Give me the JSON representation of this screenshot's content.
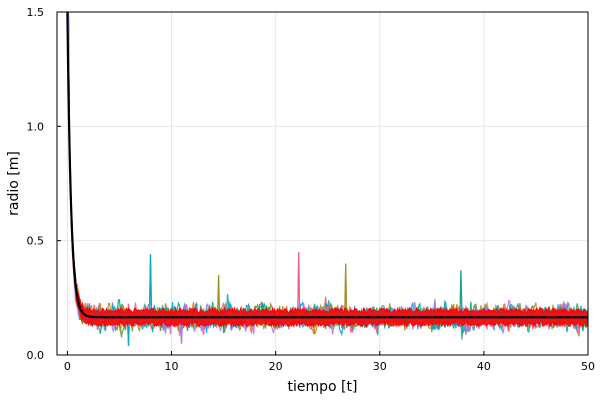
{
  "chart_data": {
    "type": "line",
    "title": "",
    "xlabel": "tiempo [t]",
    "ylabel": "radio [m]",
    "xlim": [
      -1,
      50
    ],
    "ylim": [
      0,
      1.5
    ],
    "xticks": [
      0,
      10,
      20,
      30,
      40,
      50
    ],
    "xtick_labels": [
      "0",
      "10",
      "20",
      "30",
      "40",
      "50"
    ],
    "yticks": [
      0,
      0.5,
      1.0,
      1.5
    ],
    "ytick_labels": [
      "0.0",
      "0.5",
      "1.0",
      "1.5"
    ],
    "grid": true,
    "legend": "none",
    "noise_series": {
      "count": 12,
      "start_value": 1.5,
      "steady_value": 0.165,
      "decay_time": 0.35,
      "noise_amplitude": 0.055,
      "spike_peaks": [
        {
          "t": 8.0,
          "y": 0.44
        },
        {
          "t": 22.2,
          "y": 0.45
        },
        {
          "t": 26.7,
          "y": 0.4
        },
        {
          "t": 37.8,
          "y": 0.37
        },
        {
          "t": 14.5,
          "y": 0.35
        },
        {
          "t": 5.9,
          "y": 0.04
        },
        {
          "t": 11.0,
          "y": 0.05
        }
      ],
      "colors": [
        "#009af9",
        "#e26f46",
        "#3da44d",
        "#c271d2",
        "#ac8e18",
        "#00a9ad",
        "#ed5e93",
        "#c68225",
        "#00a98d",
        "#8e971d",
        "#00a8cb",
        "#9b7fe9"
      ]
    },
    "series": [
      {
        "style": "red band",
        "color": "#ff0000",
        "start_value": 1.5,
        "steady_value": 0.165,
        "band_halfwidth": 0.03
      },
      {
        "style": "mean",
        "color": "#000000",
        "start_value": 1.5,
        "steady_value": 0.165,
        "decay_time": 0.35
      }
    ]
  }
}
